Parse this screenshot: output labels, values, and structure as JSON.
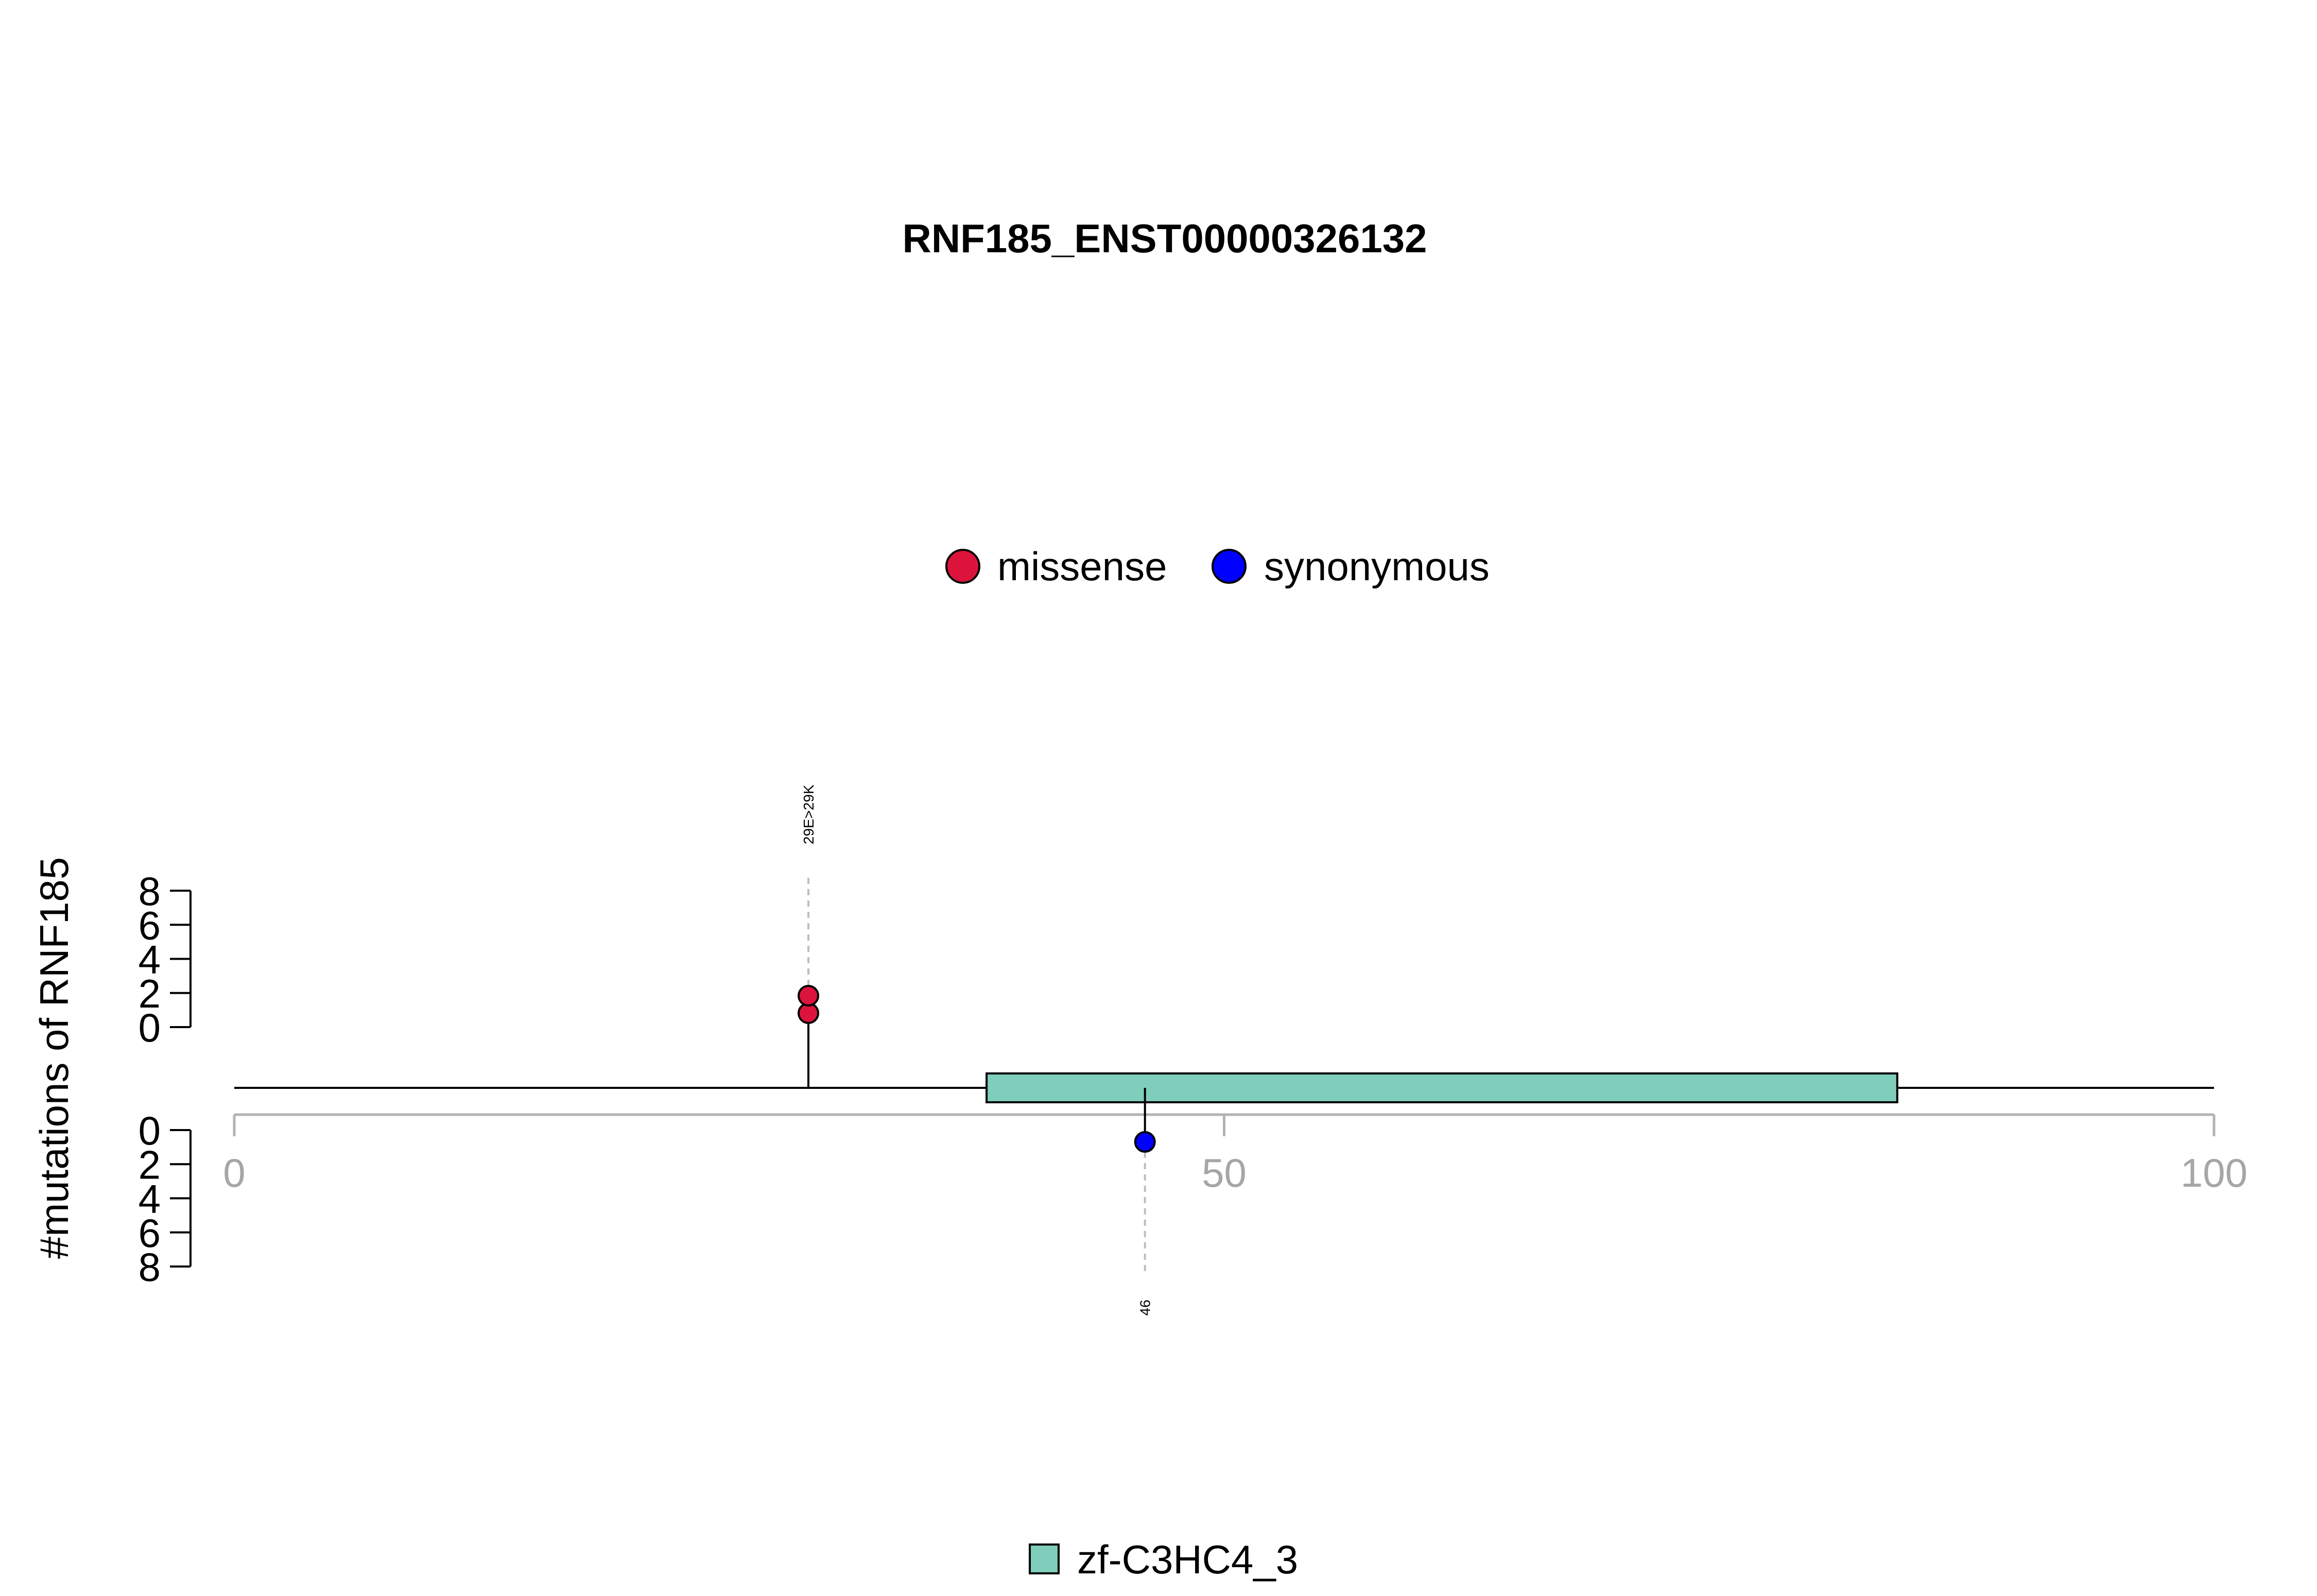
{
  "chart_data": {
    "type": "scatter",
    "subtype": "lollipop",
    "title": "RNF185_ENST00000326132",
    "ylabel": "#mutations of RNF185",
    "xlim": [
      0,
      100
    ],
    "x_ticks": [
      "0",
      "50",
      "100"
    ],
    "y_ticks_upper": [
      "0",
      "2",
      "4",
      "6",
      "8"
    ],
    "y_ticks_lower": [
      "0",
      "2",
      "4",
      "6",
      "8"
    ],
    "ylim": [
      0,
      8
    ],
    "legend": {
      "position": "top-center",
      "entries": [
        {
          "name": "missense",
          "color": "#dc143c"
        },
        {
          "name": "synonymous",
          "color": "#0000ff"
        }
      ]
    },
    "series": [
      {
        "name": "missense",
        "color": "#dc143c",
        "side": "upper",
        "points": [
          {
            "x": 29,
            "count": 2,
            "label": "29E>29K"
          }
        ]
      },
      {
        "name": "synonymous",
        "color": "#0000ff",
        "side": "lower",
        "points": [
          {
            "x": 46,
            "count": 1,
            "label": "46"
          }
        ]
      }
    ],
    "domains": [
      {
        "name": "zf-C3HC4_3",
        "start": 38,
        "end": 84,
        "color": "#7fcdbb"
      }
    ],
    "domain_legend": {
      "position": "bottom-center",
      "entries": [
        {
          "name": "zf-C3HC4_3",
          "color": "#7fcdbb"
        }
      ]
    }
  }
}
